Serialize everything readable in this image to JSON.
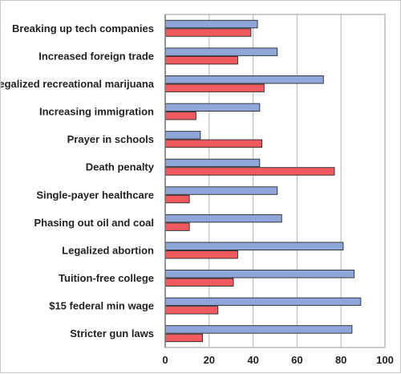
{
  "chart_data": {
    "type": "bar",
    "orientation": "horizontal",
    "categories": [
      "Breaking up tech companies",
      "Increased foreign trade",
      "Legalized recreational marijuana",
      "Increasing immigration",
      "Prayer in schools",
      "Death penalty",
      "Single-payer healthcare",
      "Phasing out oil and coal",
      "Legalized abortion",
      "Tuition-free college",
      "$15 federal min wage",
      "Stricter gun laws"
    ],
    "series": [
      {
        "color": "#8fa6d9",
        "values": [
          42,
          51,
          72,
          43,
          16,
          43,
          51,
          53,
          81,
          86,
          89,
          85
        ]
      },
      {
        "color": "#f05a5f",
        "values": [
          39,
          33,
          45,
          14,
          44,
          77,
          11,
          11,
          33,
          31,
          24,
          17
        ]
      }
    ],
    "xlim": [
      0,
      100
    ],
    "xticks": [
      "0",
      "20",
      "40",
      "60",
      "80",
      "100"
    ],
    "grid": true,
    "legend": "none"
  }
}
